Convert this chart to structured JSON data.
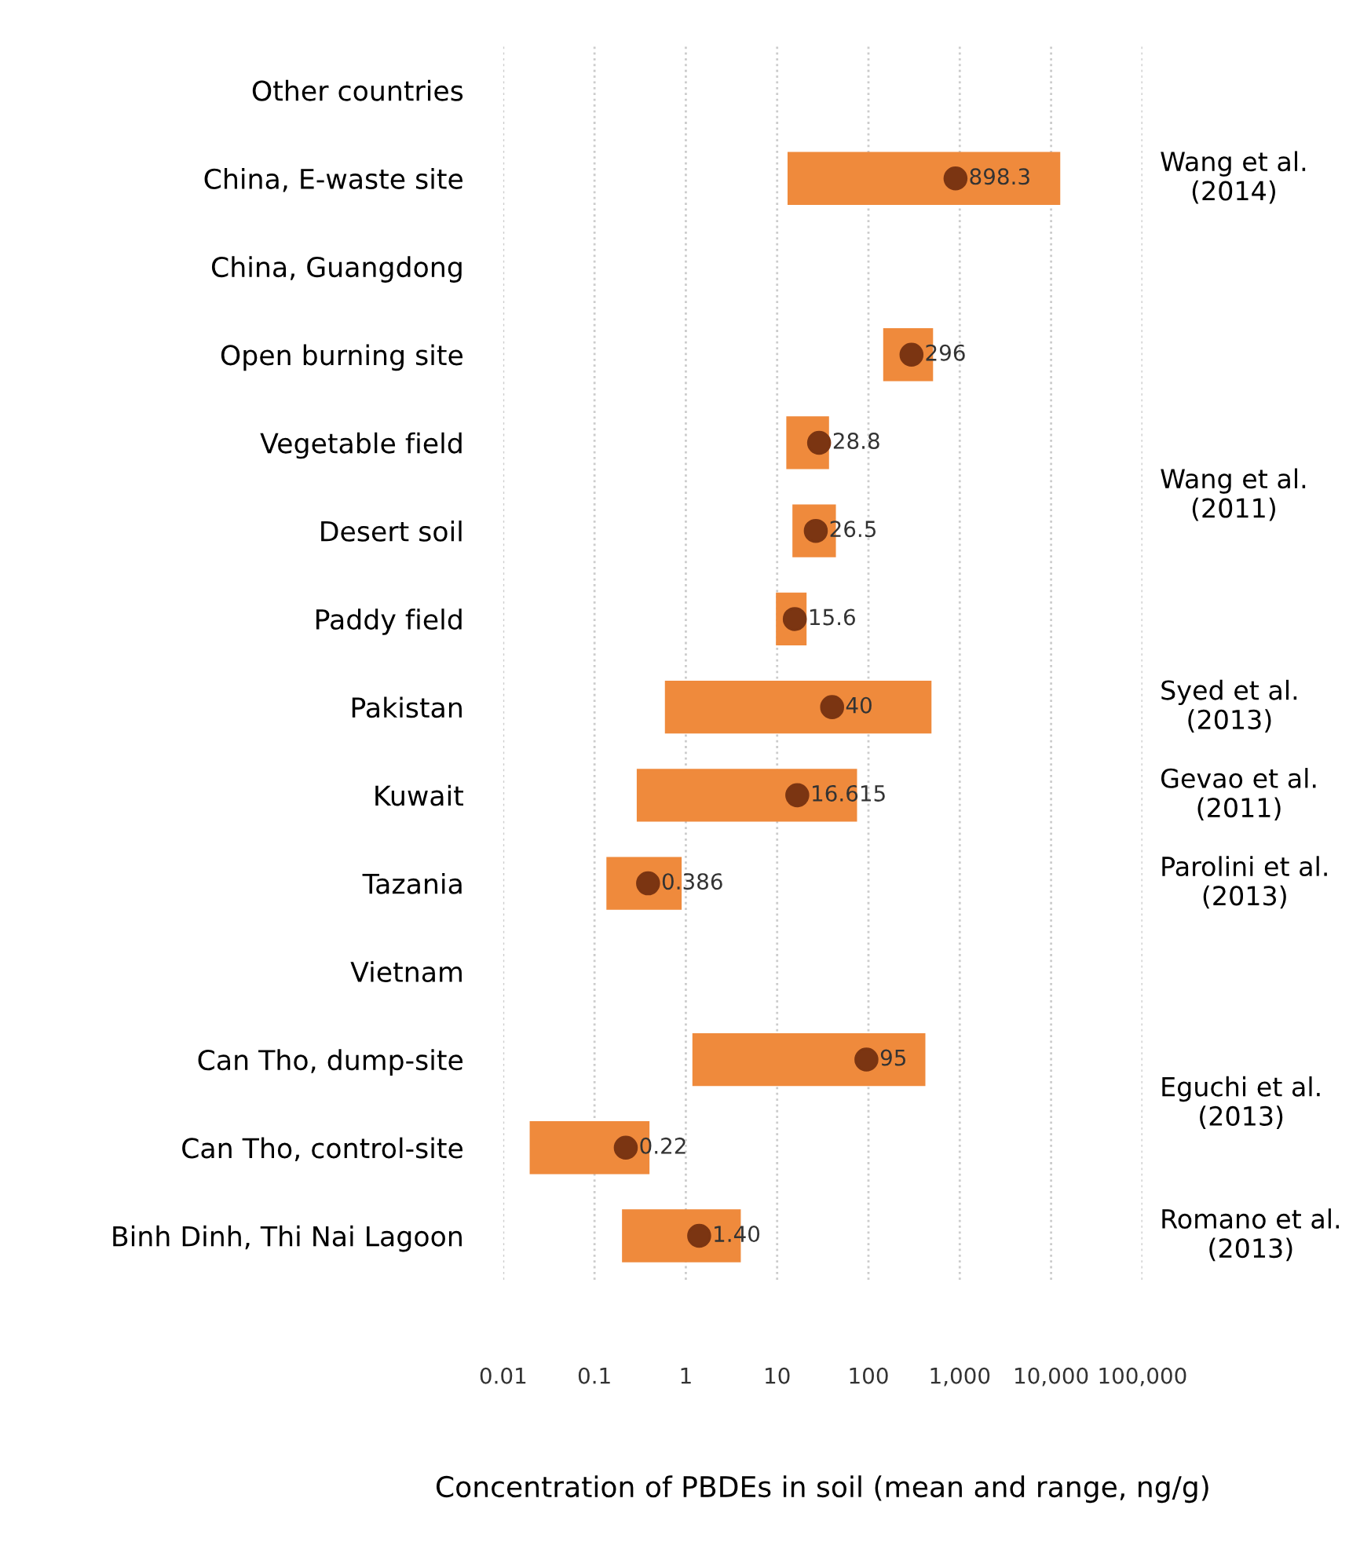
{
  "chart_data": {
    "type": "bar",
    "orientation": "horizontal",
    "log": "x",
    "xlabel": "Concentration of PBDEs in soil (mean and range, ng/g)",
    "categories": [
      "Other countries",
      "China, E-waste site",
      "China, Guangdong",
      "Open burning site",
      "Vegetable field",
      "Desert soil",
      "Paddy field",
      "Pakistan",
      "Kuwait",
      "Tazania",
      "Vietnam",
      "Can Tho, dump-site",
      "Can Tho, control-site",
      "Binh Dinh, Thi Nai Lagoon"
    ],
    "series": [
      {
        "color": "#ef8a3c",
        "base": [
          null,
          13,
          null,
          145,
          12.6,
          14.7,
          9.7,
          0.59,
          0.29,
          0.135,
          null,
          1.18,
          0.0195,
          0.2
        ],
        "values": [
          null,
          12587,
          null,
          365,
          24.4,
          29.3,
          11.3,
          489.41,
          74.71,
          0.765,
          null,
          418.82,
          0.3805,
          3.8
        ]
      },
      {
        "type": "scatter",
        "color": "#7b3512",
        "marker": "circle",
        "values": [
          null,
          898.3,
          null,
          296,
          28.8,
          26.5,
          15.6,
          40,
          16.615,
          0.386,
          null,
          95,
          0.22,
          1.4
        ],
        "value_labels": [
          null,
          "898.3",
          null,
          "296",
          "28.8",
          "26.5",
          "15.6",
          "40",
          "16.615",
          "0.386",
          null,
          "95",
          "0.22",
          "1.40"
        ]
      }
    ],
    "xlim": [
      0.01,
      100000
    ],
    "xticks": [
      0.01,
      0.1,
      1,
      10,
      100,
      {
        "value": 1000,
        "label": "1,000"
      },
      {
        "value": 10000,
        "label": "10,000"
      },
      {
        "value": 100000,
        "label": "100,000"
      }
    ],
    "grid": "x",
    "annotations": [
      "Wang et al.\n(2014)",
      "Wang et al.\n(2011)",
      "Syed et al.\n(2013)",
      "Gevao et al.\n(2011)",
      "Parolini et al.\n(2013)",
      "Eguchi et al.\n(2013)",
      "Romano et al.\n(2013)"
    ]
  }
}
